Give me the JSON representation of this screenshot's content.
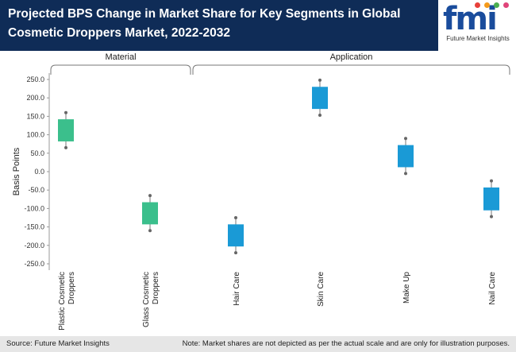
{
  "header": {
    "title": "Projected BPS Change in Market Share for Key Segments in Global Cosmetic Droppers Market, 2022-2032",
    "logo_text": "fmi",
    "logo_subtitle": "Future Market Insights"
  },
  "footer": {
    "source": "Source: Future Market Insights",
    "note": "Note: Market shares are not depicted as per the actual scale and are only for illustration purposes."
  },
  "colors": {
    "header_bg": "#0f2c57",
    "material": "#3bbf8c",
    "application": "#1a9ad6",
    "footer_bg": "#e6e6e6"
  },
  "chart_data": {
    "type": "box",
    "ylabel": "Basis Points",
    "ylim": [
      -250,
      250
    ],
    "yticks": [
      250,
      200,
      150,
      100,
      50,
      0,
      -50,
      -100,
      -150,
      -200,
      -250
    ],
    "groups": [
      {
        "label": "Material",
        "categories": [
          "Plastic Cosmetic Droppers",
          "Glass Cosmetic Droppers"
        ]
      },
      {
        "label": "Application",
        "categories": [
          "Hair Care",
          "Skin Care",
          "Make Up",
          "Nail Care"
        ]
      }
    ],
    "series": [
      {
        "category": "Plastic Cosmetic Droppers",
        "group": "Material",
        "whisker_low": 65,
        "box_low": 82,
        "box_high": 142,
        "whisker_high": 160
      },
      {
        "category": "Glass Cosmetic Droppers",
        "group": "Material",
        "whisker_low": -160,
        "box_low": -143,
        "box_high": -83,
        "whisker_high": -65
      },
      {
        "category": "Hair Care",
        "group": "Application",
        "whisker_low": -220,
        "box_low": -203,
        "box_high": -143,
        "whisker_high": -125
      },
      {
        "category": "Skin Care",
        "group": "Application",
        "whisker_low": 153,
        "box_low": 170,
        "box_high": 230,
        "whisker_high": 248
      },
      {
        "category": "Make Up",
        "group": "Application",
        "whisker_low": -5,
        "box_low": 12,
        "box_high": 72,
        "whisker_high": 90
      },
      {
        "category": "Nail Care",
        "group": "Application",
        "whisker_low": -122,
        "box_low": -105,
        "box_high": -43,
        "whisker_high": -25
      }
    ],
    "x_tick_labels": [
      [
        "Plastic Cosmetic",
        "Droppers"
      ],
      [
        "Glass Cosmetic",
        "Droppers"
      ],
      [
        "Hair Care"
      ],
      [
        "Skin Care"
      ],
      [
        "Make Up"
      ],
      [
        "Nail Care"
      ]
    ]
  }
}
